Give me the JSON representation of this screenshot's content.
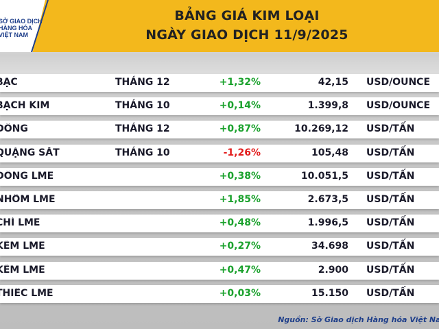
{
  "header": {
    "logo_text": "SỞ GIAO DỊCH\nHÀNG HÓA\nVIỆT NAM",
    "title_line1": "BẢNG GIÁ KIM LOẠI",
    "title_line2": "NGÀY GIAO DỊCH 11/9/2025",
    "background_color": "#f3b81c"
  },
  "table": {
    "rows": [
      {
        "name": "BẠC",
        "month": "THÁNG 12",
        "change": "+1,32%",
        "price": "42,15",
        "unit": "USD/OUNCE",
        "direction": "up"
      },
      {
        "name": "BẠCH KIM",
        "month": "THÁNG 10",
        "change": "+0,14%",
        "price": "1.399,8",
        "unit": "USD/OUNCE",
        "direction": "up"
      },
      {
        "name": "ĐỒNG",
        "month": "THÁNG 12",
        "change": "+0,87%",
        "price": "10.269,12",
        "unit": "USD/TẤN",
        "direction": "up"
      },
      {
        "name": "QUẶNG SẮT",
        "month": "THÁNG 10",
        "change": "-1,26%",
        "price": "105,48",
        "unit": "USD/TẤN",
        "direction": "down"
      },
      {
        "name": "ĐỒNG LME",
        "month": "",
        "change": "+0,38%",
        "price": "10.051,5",
        "unit": "USD/TẤN",
        "direction": "up"
      },
      {
        "name": "NHÔM LME",
        "month": "",
        "change": "+1,85%",
        "price": "2.673,5",
        "unit": "USD/TẤN",
        "direction": "up"
      },
      {
        "name": "CHÌ LME",
        "month": "",
        "change": "+0,48%",
        "price": "1.996,5",
        "unit": "USD/TẤN",
        "direction": "up"
      },
      {
        "name": "KẼM LME",
        "month": "",
        "change": "+0,27%",
        "price": "34.698",
        "unit": "USD/TẤN",
        "direction": "up"
      },
      {
        "name": "KẼM LME",
        "month": "",
        "change": "+0,47%",
        "price": "2.900",
        "unit": "USD/TẤN",
        "direction": "up"
      },
      {
        "name": "THIẾC LME",
        "month": "",
        "change": "+0,03%",
        "price": "15.150",
        "unit": "USD/TẤN",
        "direction": "up"
      }
    ],
    "up_color": "#1aa12c",
    "down_color": "#e21b1b"
  },
  "footer": {
    "source": "Nguồn: Sở Giao dịch Hàng hóa Việt Nam"
  }
}
